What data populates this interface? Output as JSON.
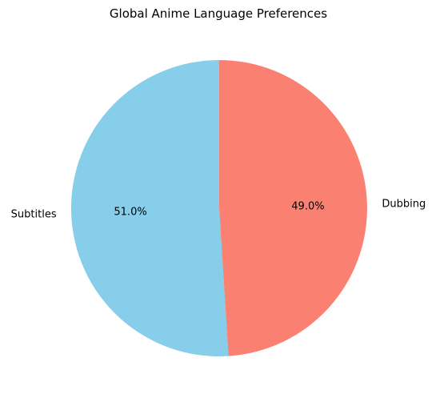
{
  "chart_data": {
    "type": "pie",
    "title": "Global Anime Language Preferences",
    "labels": [
      "Subtitles",
      "Dubbing"
    ],
    "values": [
      51.0,
      49.0
    ],
    "percent_labels": [
      "51.0%",
      "49.0%"
    ],
    "colors": [
      "#87CEEB",
      "#FA8072"
    ],
    "start_angle_deg": 90,
    "direction": "counterclockwise"
  }
}
